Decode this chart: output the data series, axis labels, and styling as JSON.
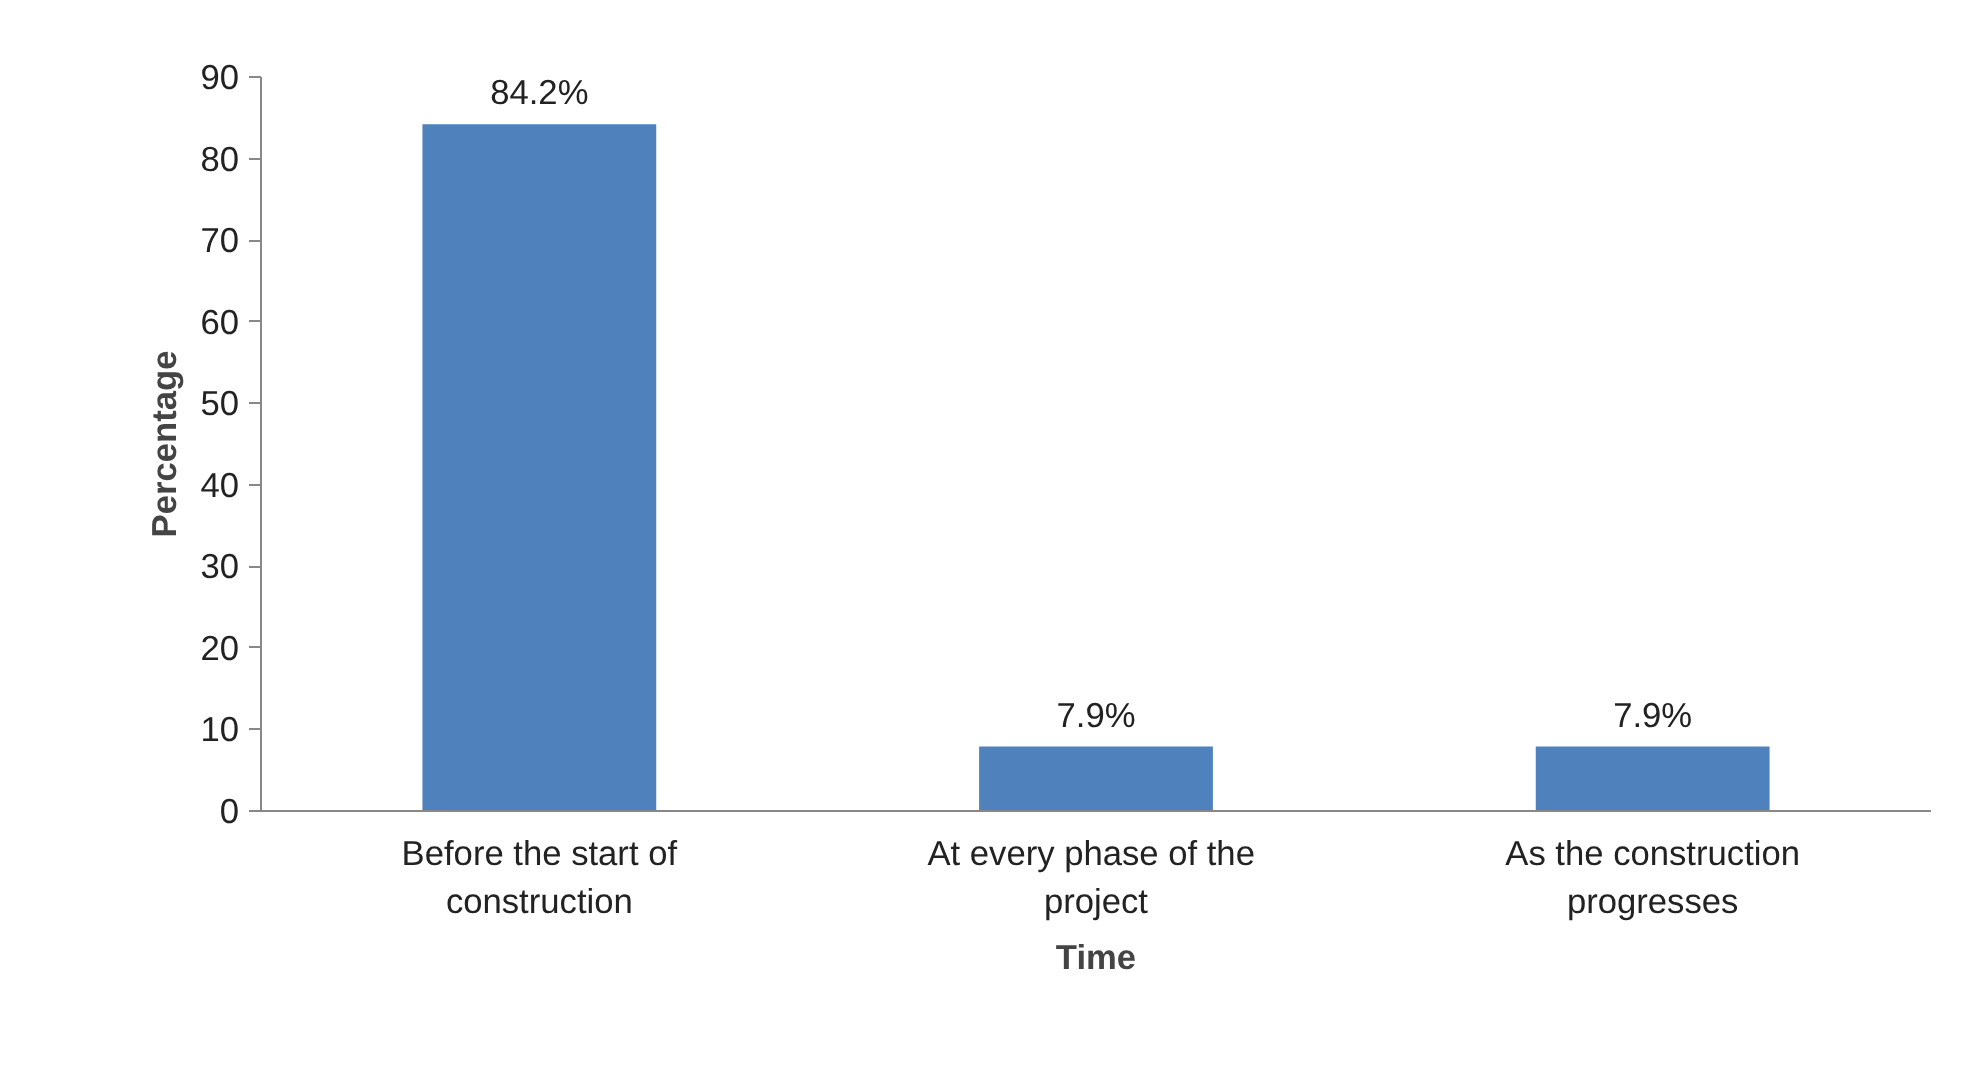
{
  "chart_data": {
    "type": "bar",
    "xlabel": "Time",
    "ylabel": "Percentage",
    "categories": [
      "Before the start of construction",
      "At every phase of  the project",
      "As the construction progresses"
    ],
    "values": [
      84.2,
      7.9,
      7.9
    ],
    "color": "#4f81bd",
    "value_labels": [
      "84.2%",
      "7.9%",
      "7.9%"
    ],
    "ylim": [
      0,
      90
    ],
    "yticks": [
      0,
      10,
      20,
      30,
      40,
      50,
      60,
      70,
      80,
      90
    ],
    "grid": false
  }
}
